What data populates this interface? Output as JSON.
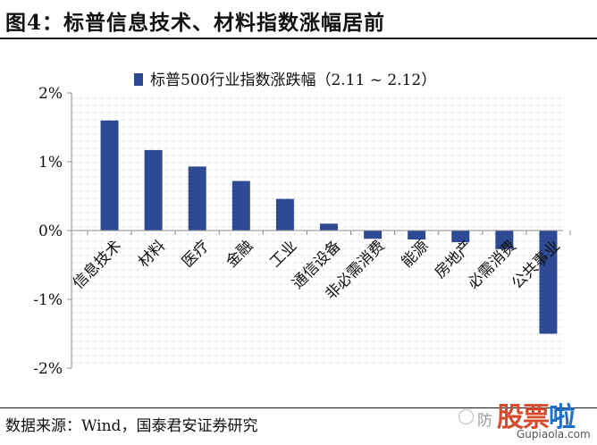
{
  "header": {
    "title": "图4：标普信息技术、材料指数涨幅居前"
  },
  "footer": {
    "source": "数据来源：Wind，国泰君安证券研究"
  },
  "watermark": {
    "icon": "chat-bubble-icon",
    "partial_text": "防",
    "logo_main": "股票",
    "logo_accent": "啦",
    "url": "Gupiaola.com"
  },
  "colors": {
    "bar": "#2e4a94",
    "grid_dots": "#c4c4c4",
    "axis": "#8c8c8c"
  },
  "chart_data": {
    "type": "bar",
    "title": "",
    "xlabel": "",
    "ylabel": "",
    "legend": {
      "label": "标普500行业指数涨跌幅（2.11 ~ 2.12）",
      "placement": "top"
    },
    "categories": [
      "信息技术",
      "材料",
      "医疗",
      "金融",
      "工业",
      "通信设备",
      "非必需消费",
      "能源",
      "房地产",
      "必需消费",
      "公共事业"
    ],
    "values": [
      1.6,
      1.17,
      0.93,
      0.72,
      0.46,
      0.1,
      -0.12,
      -0.13,
      -0.17,
      -0.27,
      -1.5
    ],
    "ylim": [
      -2,
      2
    ],
    "yticks": [
      -2,
      -1,
      0,
      1,
      2
    ],
    "ytick_labels": [
      "-2%",
      "-1%",
      "0%",
      "1%",
      "2%"
    ],
    "grid": "dotted"
  }
}
